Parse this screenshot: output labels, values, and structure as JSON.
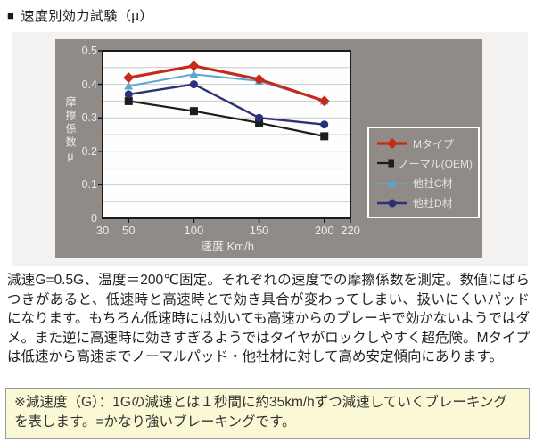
{
  "page": {
    "title_bullet": "■",
    "title": "速度別効力試験（μ）"
  },
  "chart_data": {
    "type": "line",
    "title": "",
    "xlabel": "速度 Km/h",
    "ylabel": "摩擦係数μ",
    "x": [
      50,
      100,
      150,
      200
    ],
    "xlim": [
      30,
      220
    ],
    "ylim": [
      0,
      0.5
    ],
    "x_ticks": [
      30,
      50,
      100,
      150,
      200,
      220
    ],
    "y_ticks": [
      0,
      0.1,
      0.2,
      0.3,
      0.4,
      0.5
    ],
    "grid_step": 0.05,
    "grid": "horizontal",
    "legend_position": "right-outside",
    "series": [
      {
        "name": "Mタイプ",
        "color": "#c62a1b",
        "marker": "diamond",
        "line_width": 3.2,
        "values": [
          0.42,
          0.455,
          0.415,
          0.35
        ]
      },
      {
        "name": "ノーマル(OEM)",
        "color": "#1c1c1c",
        "marker": "square",
        "line_width": 2.2,
        "values": [
          0.35,
          0.32,
          0.285,
          0.245
        ]
      },
      {
        "name": "他社C材",
        "color": "#5ba6d2",
        "marker": "triangle",
        "line_width": 2.0,
        "values": [
          0.395,
          0.43,
          0.41,
          0.35
        ]
      },
      {
        "name": "他社D材",
        "color": "#2a3178",
        "marker": "circle",
        "line_width": 2.4,
        "values": [
          0.37,
          0.4,
          0.3,
          0.28
        ]
      }
    ],
    "draw_order": [
      2,
      1,
      3,
      0
    ]
  },
  "description": "減速G=0.5G、温度＝200℃固定。それぞれの速度での摩擦係数を測定。数値にばらつきがあると、低速時と高速時とで効き具合が変わってしまい、扱いにくいパッドになります。もちろん低速時には効いても高速からのブレーキで効かないようではダメ。また逆に高速時に効きすぎるようではタイヤがロックしやすく超危険。Mタイプは低速から高速までノーマルパッド・他社材に対して高め安定傾向にあります。",
  "note": "※減速度（G）：1Gの減速とは１秒間に約35km/hずつ減速していくブレーキングを表します。=かなり強いブレーキングです。",
  "colors": {
    "page_bg": "#ffffff",
    "panel_bg": "#f3f2f0",
    "chart_bg": "#918b88",
    "plot_bg": "#fefefe",
    "grid": "#c9c9c9",
    "axis": "#1a1a1a",
    "axis_label": "#edebe8",
    "legend_border": "#ffffff",
    "legend_text": "#e5e2df",
    "note_bg": "#fbf9d5",
    "note_border": "#9a9a9a",
    "text": "#222222"
  }
}
